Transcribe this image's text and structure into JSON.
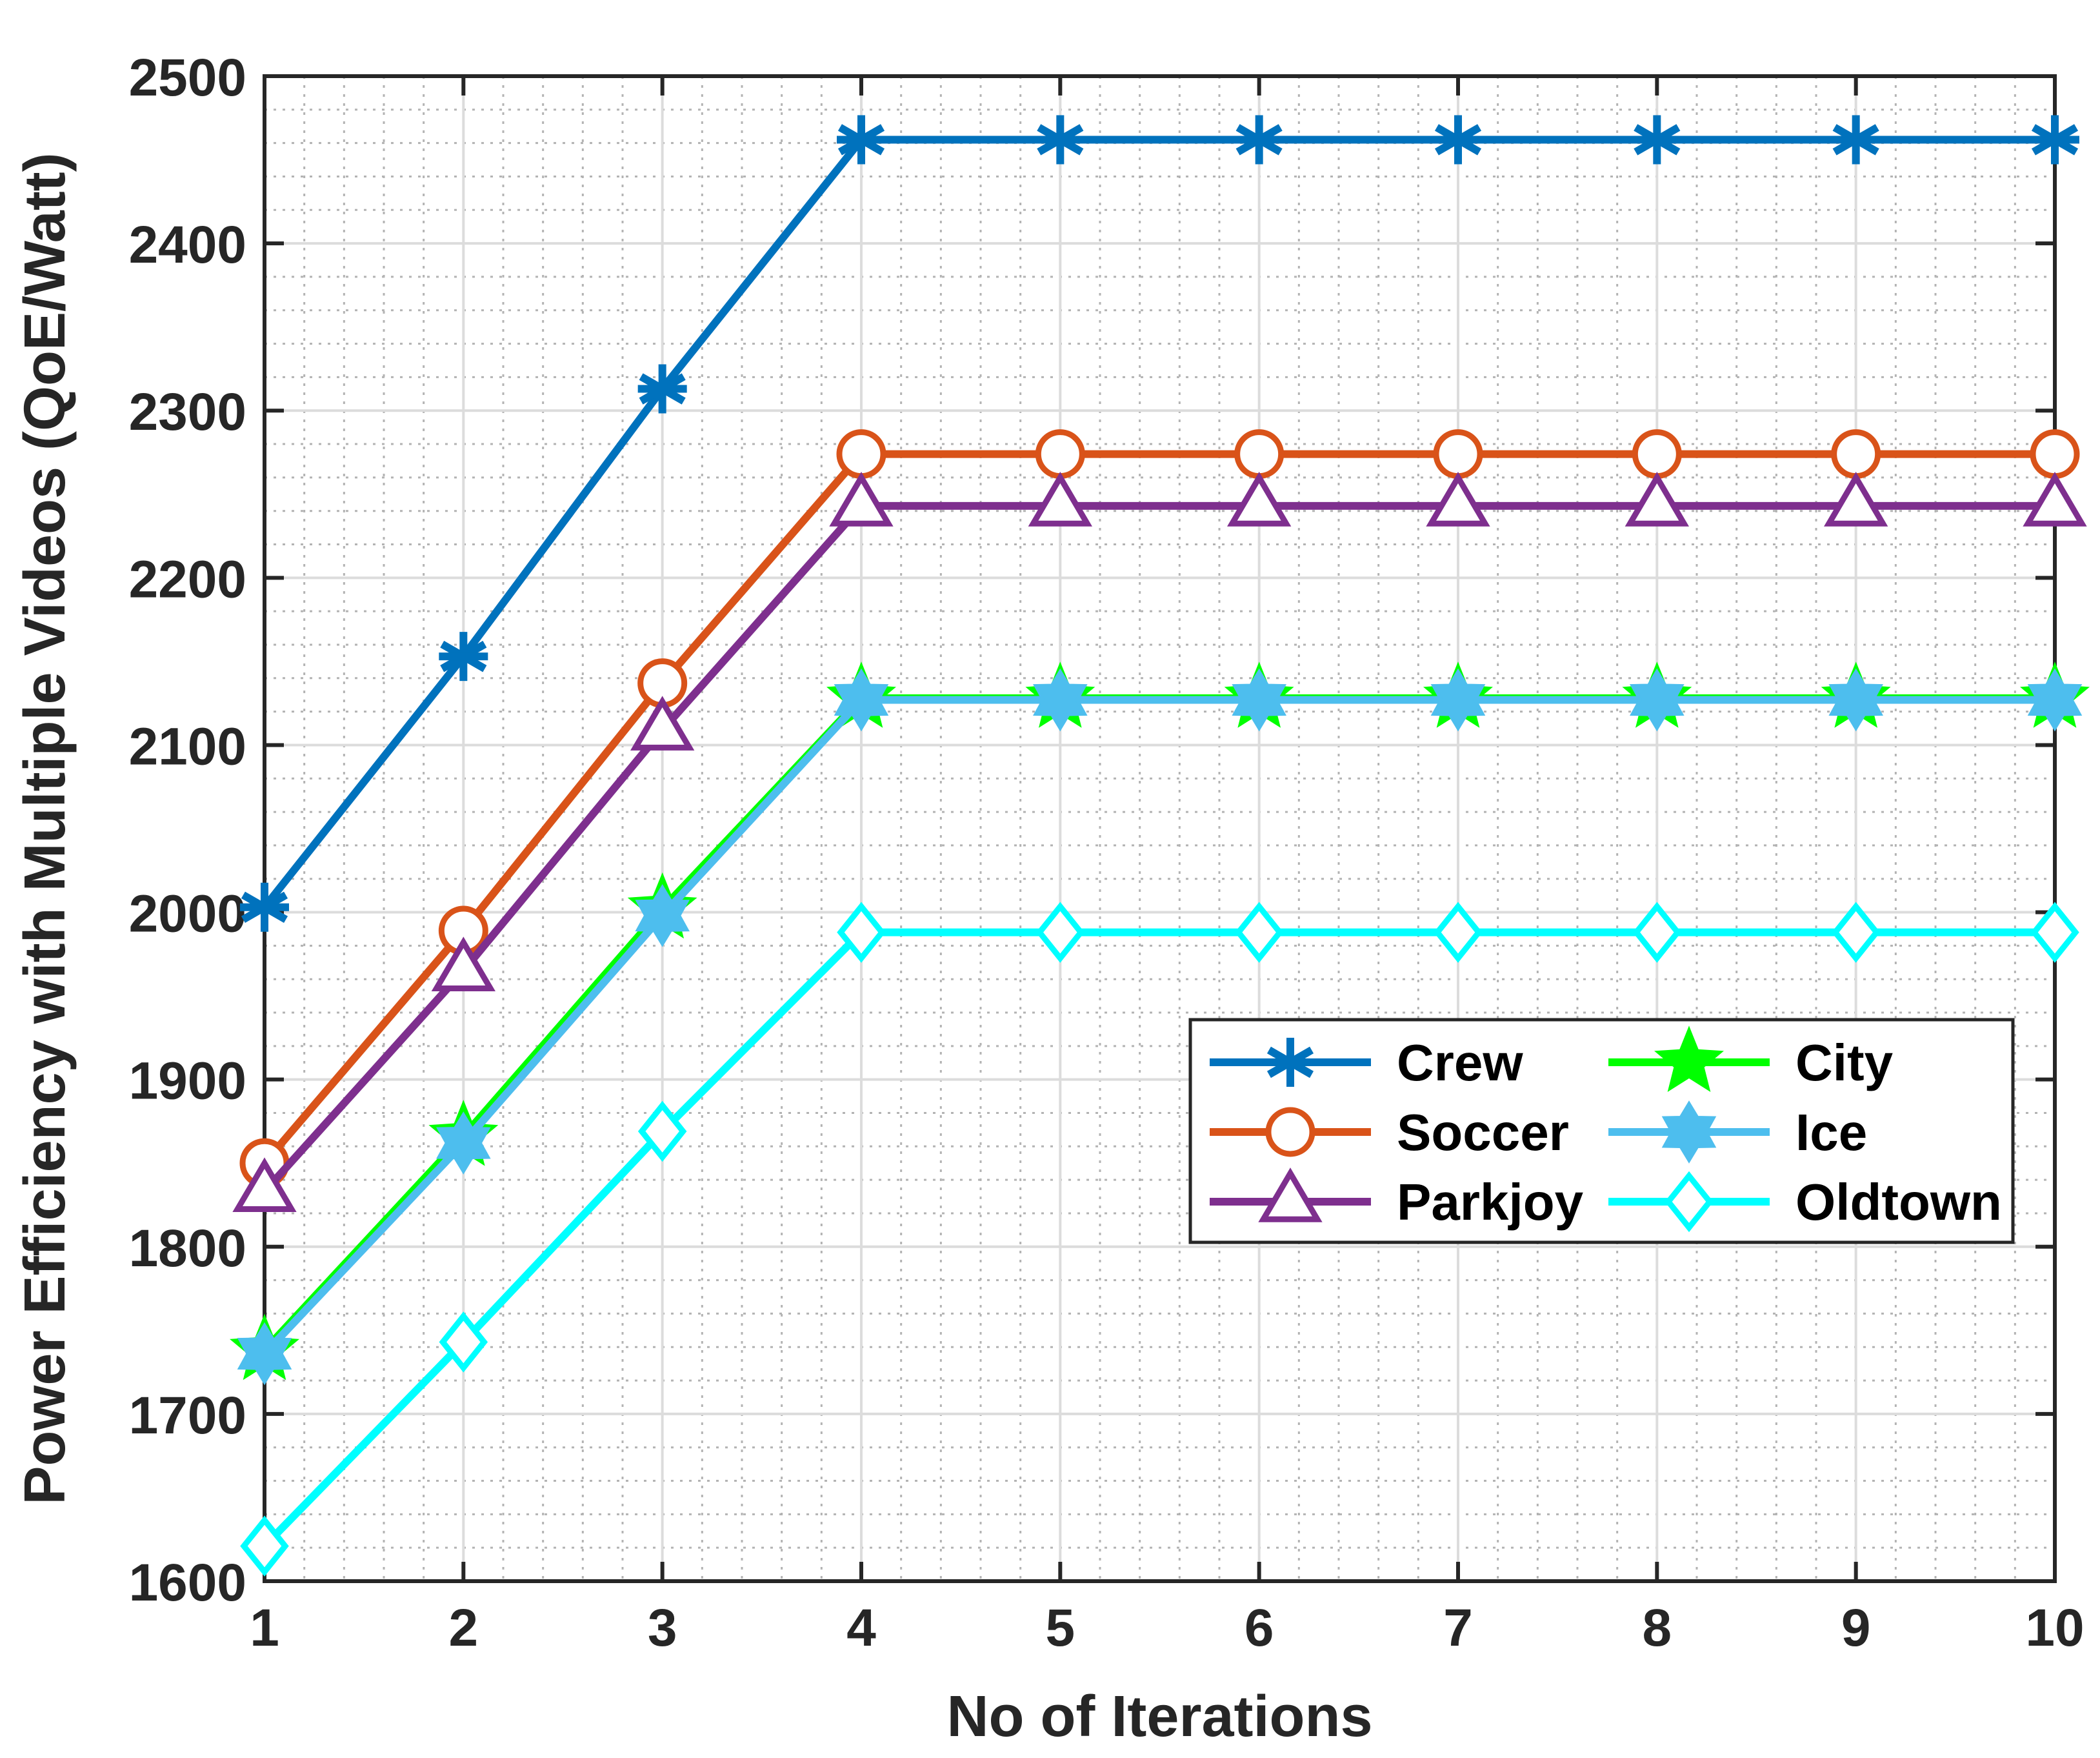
{
  "chart_data": {
    "type": "line",
    "title": "",
    "xlabel": "No of Iterations",
    "ylabel": "Power Efficiency with Multiple Videos (QoE/Watt)",
    "x": [
      1,
      2,
      3,
      4,
      5,
      6,
      7,
      8,
      9,
      10
    ],
    "xlim": [
      1,
      10
    ],
    "ylim": [
      1600,
      2500
    ],
    "xticks": [
      1,
      2,
      3,
      4,
      5,
      6,
      7,
      8,
      9,
      10
    ],
    "yticks": [
      1600,
      1700,
      1800,
      1900,
      2000,
      2100,
      2200,
      2300,
      2400,
      2500
    ],
    "grid": true,
    "minor_grid": true,
    "legend_position": "right-center",
    "series": [
      {
        "name": "Crew",
        "color": "#0072BD",
        "marker": "asterisk",
        "values": [
          2003,
          2153,
          2313,
          2462,
          2462,
          2462,
          2462,
          2462,
          2462,
          2462
        ]
      },
      {
        "name": "Soccer",
        "color": "#D95319",
        "marker": "circle",
        "values": [
          1850,
          1989,
          2137,
          2274,
          2274,
          2274,
          2274,
          2274,
          2274,
          2274
        ]
      },
      {
        "name": "Parkjoy",
        "color": "#7E2F8E",
        "marker": "triangle",
        "values": [
          1833,
          1965,
          2109,
          2243,
          2243,
          2243,
          2243,
          2243,
          2243,
          2243
        ]
      },
      {
        "name": "City",
        "color": "#00FF00",
        "marker": "pentagram",
        "values": [
          1738,
          1866,
          2002,
          2128,
          2128,
          2128,
          2128,
          2128,
          2128,
          2128
        ]
      },
      {
        "name": "Ice",
        "color": "#4DBEEE",
        "marker": "hexagram",
        "values": [
          1736,
          1862,
          1998,
          2127,
          2127,
          2127,
          2127,
          2127,
          2127,
          2127
        ]
      },
      {
        "name": "Oldtown",
        "color": "#00FFFF",
        "marker": "diamond",
        "values": [
          1621,
          1743,
          1869,
          1988,
          1988,
          1988,
          1988,
          1988,
          1988,
          1988
        ]
      }
    ]
  }
}
